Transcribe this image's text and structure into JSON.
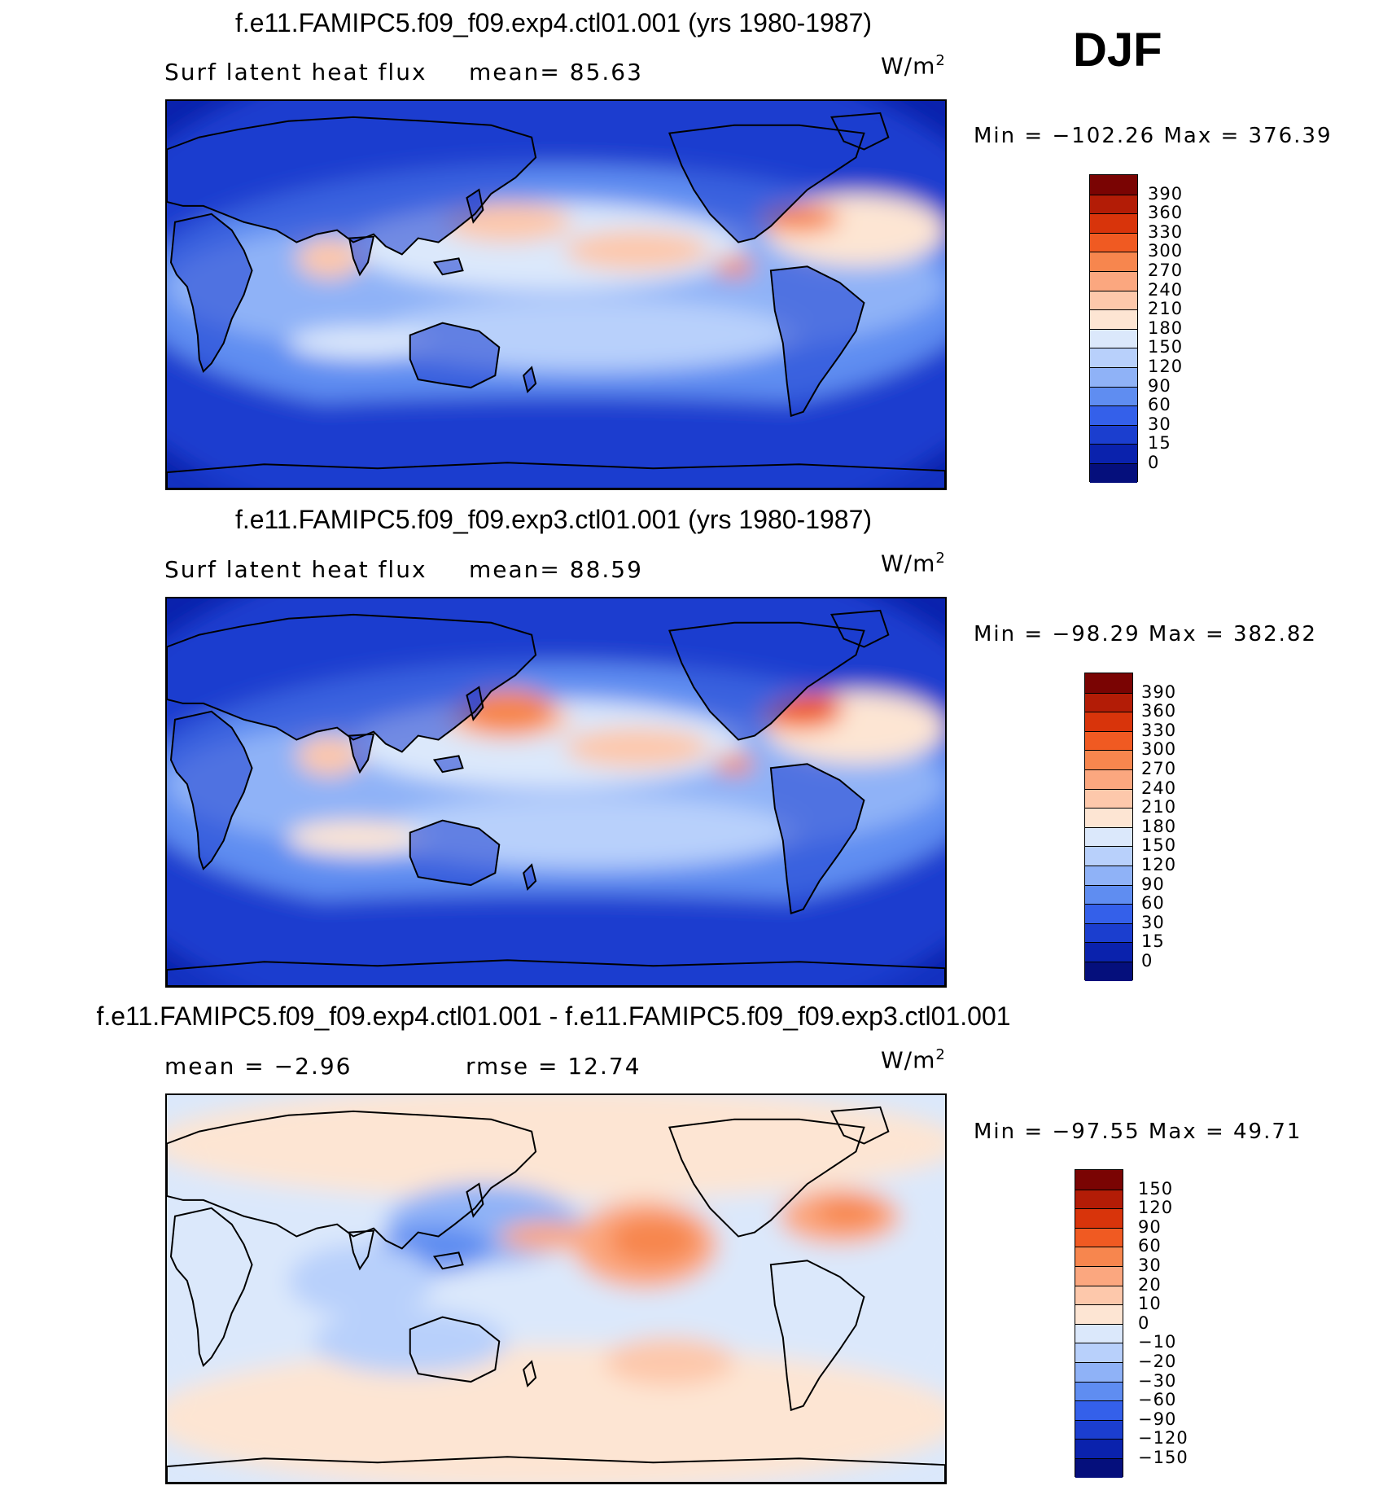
{
  "season": "DJF",
  "panels": [
    {
      "title": "f.e11.FAMIPC5.f09_f09.exp4.ctl01.001 (yrs 1980-1987)",
      "left_text": "Surf latent heat flux",
      "mid_text": "mean=  85.63",
      "units": "W/m",
      "units_sup": "2",
      "minmax": "Min = −102.26 Max = 376.39",
      "colorbar": {
        "levels": [
          "390",
          "360",
          "330",
          "300",
          "270",
          "240",
          "210",
          "180",
          "150",
          "120",
          "90",
          "60",
          "30",
          "15",
          "0"
        ],
        "colors": [
          "#7a0403",
          "#b31c06",
          "#d8340b",
          "#f05a22",
          "#f7864e",
          "#fba77f",
          "#fdc8ab",
          "#fde5d3",
          "#dbe8fb",
          "#b8d0fb",
          "#8fb2f7",
          "#5f8df1",
          "#3460ea",
          "#1b3ecf",
          "#0a22ad",
          "#050f7c"
        ]
      },
      "map_style": "ctl",
      "map_variant": 1
    },
    {
      "title": "f.e11.FAMIPC5.f09_f09.exp3.ctl01.001 (yrs 1980-1987)",
      "left_text": "Surf latent heat flux",
      "mid_text": "mean=  88.59",
      "units": "W/m",
      "units_sup": "2",
      "minmax": "Min = −98.29 Max = 382.82",
      "colorbar": {
        "levels": [
          "390",
          "360",
          "330",
          "300",
          "270",
          "240",
          "210",
          "180",
          "150",
          "120",
          "90",
          "60",
          "30",
          "15",
          "0"
        ],
        "colors": [
          "#7a0403",
          "#b31c06",
          "#d8340b",
          "#f05a22",
          "#f7864e",
          "#fba77f",
          "#fdc8ab",
          "#fde5d3",
          "#dbe8fb",
          "#b8d0fb",
          "#8fb2f7",
          "#5f8df1",
          "#3460ea",
          "#1b3ecf",
          "#0a22ad",
          "#050f7c"
        ]
      },
      "map_style": "ctl",
      "map_variant": 2
    },
    {
      "title": "f.e11.FAMIPC5.f09_f09.exp4.ctl01.001 - f.e11.FAMIPC5.f09_f09.exp3.ctl01.001",
      "left_text": "mean =  −2.96",
      "mid_text": "rmse =  12.74",
      "units": "W/m",
      "units_sup": "2",
      "minmax": "Min = −97.55 Max =  49.71",
      "colorbar": {
        "levels": [
          "150",
          "120",
          "90",
          "60",
          "30",
          "20",
          "10",
          "0",
          "−10",
          "−20",
          "−30",
          "−60",
          "−90",
          "−120",
          "−150"
        ],
        "colors": [
          "#7a0403",
          "#b31c06",
          "#d8340b",
          "#f05a22",
          "#f7864e",
          "#fba77f",
          "#fdc8ab",
          "#fde5d3",
          "#dbe8fb",
          "#b8d0fb",
          "#8fb2f7",
          "#5f8df1",
          "#3460ea",
          "#1b3ecf",
          "#0a22ad",
          "#050f7c"
        ]
      },
      "map_style": "diff",
      "map_variant": 3
    }
  ]
}
